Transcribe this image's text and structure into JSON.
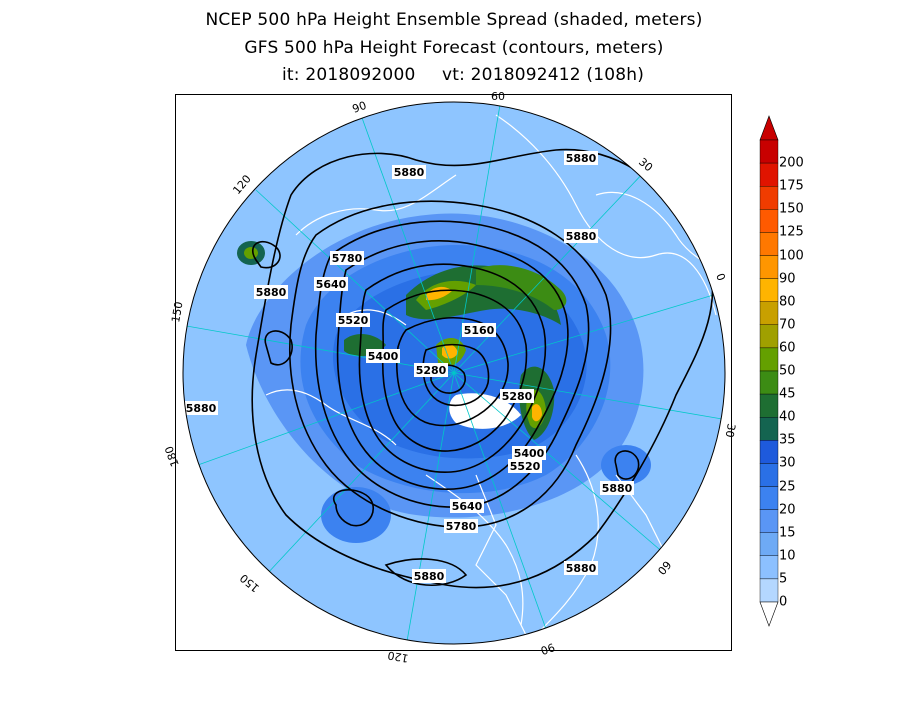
{
  "titles": {
    "line1": "NCEP 500 hPa Height Ensemble Spread (shaded, meters)",
    "line2": "GFS 500 hPa Height Forecast (contours, meters)",
    "init_time": "it: 2018092000",
    "valid_time": "vt: 2018092412 (108h)"
  },
  "map": {
    "projection": "north-polar-stereographic",
    "longitude_labels": [
      "60",
      "30",
      "0",
      "30",
      "60",
      "90",
      "120",
      "150",
      "180",
      "150",
      "120",
      "90"
    ],
    "contour_labels": [
      "5880",
      "5880",
      "5880",
      "5880",
      "5880",
      "5880",
      "5880",
      "5880",
      "5780",
      "5780",
      "5640",
      "5640",
      "5520",
      "5520",
      "5400",
      "5400",
      "5280",
      "5280",
      "5160"
    ],
    "colors": {
      "ocean_base": "#8ec5ff",
      "land_lines": "#ffffff",
      "contours": "#000000",
      "grid": "#00c8c8"
    }
  },
  "colorbar": {
    "levels": [
      "200",
      "175",
      "150",
      "125",
      "100",
      "90",
      "80",
      "70",
      "60",
      "50",
      "45",
      "40",
      "35",
      "30",
      "25",
      "20",
      "15",
      "10",
      "5",
      "0"
    ],
    "colors": [
      "#c80000",
      "#e01400",
      "#f03c00",
      "#ff5a00",
      "#ff7800",
      "#ff9600",
      "#ffb400",
      "#c8a000",
      "#a0a000",
      "#64a000",
      "#3c8c14",
      "#1e6e32",
      "#146450",
      "#1e5adc",
      "#2a70e6",
      "#3c82f0",
      "#5a96f5",
      "#6eaaf5",
      "#8cc0ff",
      "#b4d7ff"
    ]
  }
}
